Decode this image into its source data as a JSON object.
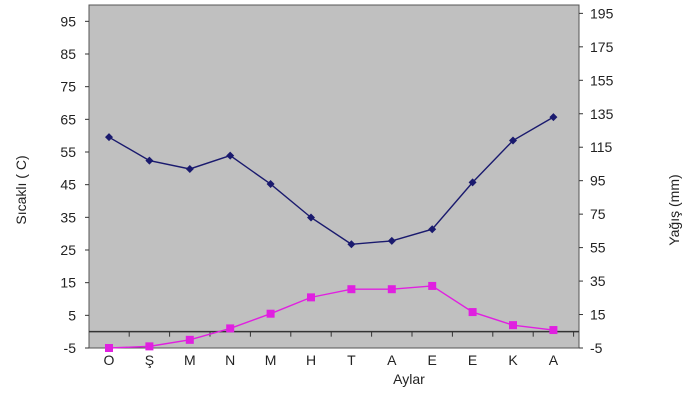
{
  "chart_data": {
    "type": "line",
    "categories": [
      "O",
      "Ş",
      "M",
      "N",
      "M",
      "H",
      "T",
      "A",
      "E",
      "E",
      "K",
      "A"
    ],
    "xlabel": "Aylar",
    "ylabel_left": "Sıcaklı ( C)",
    "ylabel_right": "Yağış (mm)",
    "ylim_left": [
      -5,
      100
    ],
    "ylim_right": [
      -5,
      200
    ],
    "yticks_left": [
      -5,
      5,
      15,
      25,
      35,
      45,
      55,
      65,
      75,
      85,
      95
    ],
    "yticks_right": [
      -5,
      15,
      35,
      55,
      75,
      95,
      115,
      135,
      155,
      175,
      195
    ],
    "grid": false,
    "plot_background": "#c0c0c0",
    "series": [
      {
        "axis": "right",
        "color": "#1a1a6e",
        "marker": "diamond",
        "values": [
          121,
          107,
          102,
          110,
          93,
          73,
          57,
          59,
          66,
          94,
          119,
          133
        ]
      },
      {
        "axis": "left",
        "color": "#e020e0",
        "marker": "square",
        "values": [
          -5.5,
          -4.5,
          -2.5,
          1,
          5.5,
          10.5,
          13,
          13,
          14,
          6,
          2,
          0.5
        ]
      }
    ]
  }
}
